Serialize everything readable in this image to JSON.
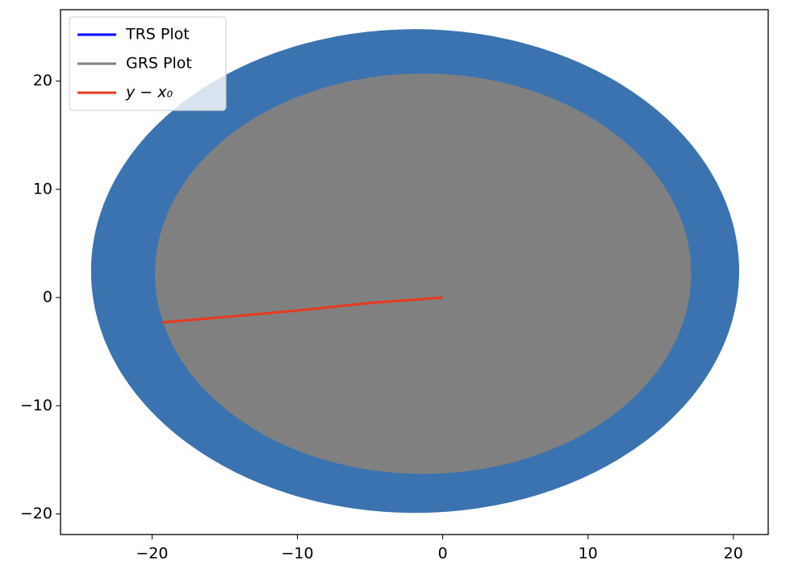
{
  "chart_data": {
    "type": "line",
    "xlim": [
      -26.3,
      22.4
    ],
    "ylim": [
      -21.9,
      26.6
    ],
    "xticks": [
      {
        "value": -20,
        "label": "−20"
      },
      {
        "value": -10,
        "label": "−10"
      },
      0,
      10,
      20
    ],
    "yticks": [
      {
        "value": -20,
        "label": "−20"
      },
      {
        "value": -10,
        "label": "−10"
      },
      0,
      10,
      20
    ],
    "legend": "upper left",
    "series": [
      {
        "name": "TRS Plot",
        "color": "#0000ff",
        "fill": "#3a73b0",
        "shape": "ellipse",
        "cx": -1.9,
        "cy": 2.45,
        "rx": 22.3,
        "ry": 22.35
      },
      {
        "name": "GRS Plot",
        "color": "#808080",
        "fill": "#808080",
        "shape": "ellipse",
        "cx": -1.35,
        "cy": 2.2,
        "rx": 18.45,
        "ry": 18.5
      },
      {
        "name": "y − x₀",
        "color": "#e8391e",
        "x": [
          0,
          -5,
          -10,
          -15,
          -19.3
        ],
        "values": [
          0,
          -0.5,
          -1.2,
          -1.8,
          -2.3
        ]
      }
    ]
  }
}
